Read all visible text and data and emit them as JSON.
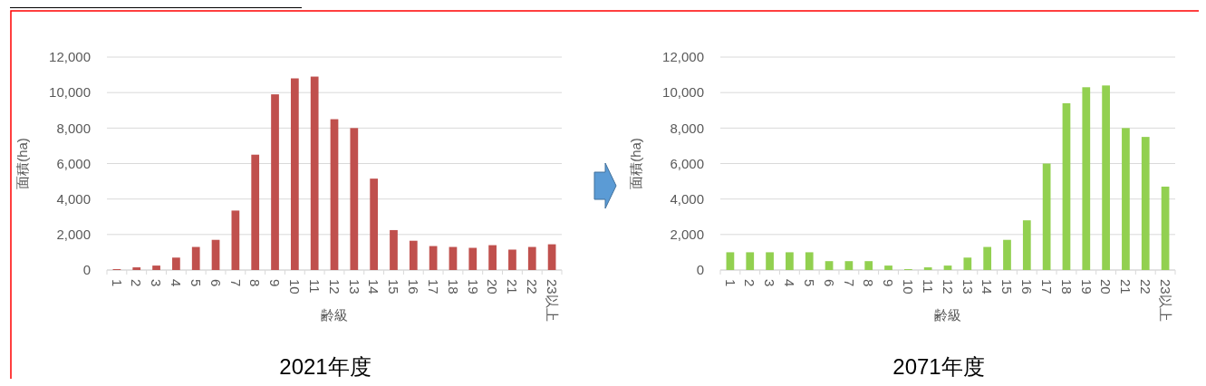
{
  "chart_data": [
    {
      "type": "bar",
      "title": "2021年度",
      "xlabel": "齢級",
      "ylabel": "面積(ha)",
      "categories": [
        "1",
        "2",
        "3",
        "4",
        "5",
        "6",
        "7",
        "8",
        "9",
        "10",
        "11",
        "12",
        "13",
        "14",
        "15",
        "16",
        "17",
        "18",
        "19",
        "20",
        "21",
        "22",
        "23以上"
      ],
      "series": [
        {
          "color": "#c0504d",
          "values": [
            50,
            150,
            250,
            700,
            1300,
            1700,
            3350,
            6500,
            9900,
            10800,
            10900,
            8500,
            8000,
            5150,
            2250,
            1650,
            1350,
            1300,
            1250,
            1400,
            1150,
            1300,
            1450
          ]
        }
      ],
      "ylim": [
        0,
        12000
      ],
      "yticks": [
        {
          "value": 0,
          "label": "0"
        },
        {
          "value": 2000,
          "label": "2,000"
        },
        {
          "value": 4000,
          "label": "4,000"
        },
        {
          "value": 6000,
          "label": "6,000"
        },
        {
          "value": 8000,
          "label": "8,000"
        },
        {
          "value": 10000,
          "label": "10,000"
        },
        {
          "value": 12000,
          "label": "12,000"
        }
      ],
      "grid": "y"
    },
    {
      "type": "bar",
      "title": "2071年度",
      "xlabel": "齢級",
      "ylabel": "面積(ha)",
      "categories": [
        "1",
        "2",
        "3",
        "4",
        "5",
        "6",
        "7",
        "8",
        "9",
        "10",
        "11",
        "12",
        "13",
        "14",
        "15",
        "16",
        "17",
        "18",
        "19",
        "20",
        "21",
        "22",
        "23以上"
      ],
      "series": [
        {
          "color": "#92d050",
          "values": [
            1000,
            1000,
            1000,
            1000,
            1000,
            500,
            500,
            500,
            250,
            50,
            150,
            250,
            700,
            1300,
            1700,
            2800,
            6000,
            9400,
            10300,
            10400,
            8000,
            7500,
            4700
          ]
        }
      ],
      "ylim": [
        0,
        12000
      ],
      "yticks": [
        {
          "value": 0,
          "label": "0"
        },
        {
          "value": 2000,
          "label": "2,000"
        },
        {
          "value": 4000,
          "label": "4,000"
        },
        {
          "value": 6000,
          "label": "6,000"
        },
        {
          "value": 8000,
          "label": "8,000"
        },
        {
          "value": 10000,
          "label": "10,000"
        },
        {
          "value": 12000,
          "label": "12,000"
        }
      ],
      "grid": "y"
    }
  ]
}
